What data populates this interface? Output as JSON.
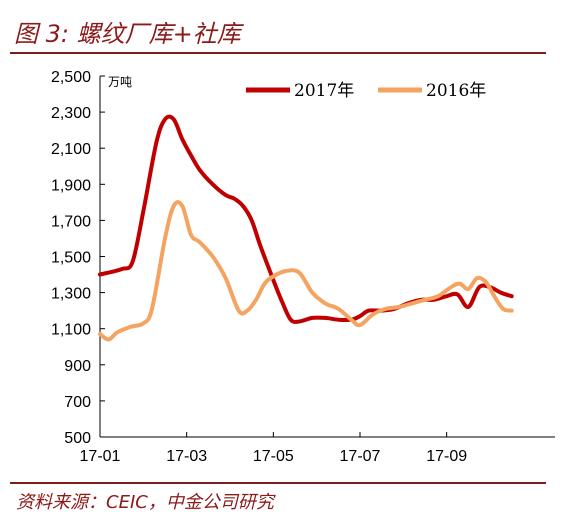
{
  "header": {
    "title": "图 3:  螺纹厂库+社库"
  },
  "footer": {
    "source": "资料来源：CEIC，中金公司研究"
  },
  "chart_data": {
    "type": "line",
    "title": "图 3:  螺纹厂库+社库",
    "ylabel": "万吨",
    "xlabel": "",
    "ylim": [
      500,
      2500
    ],
    "yticks": [
      500,
      700,
      900,
      1100,
      1300,
      1500,
      1700,
      1900,
      2100,
      2300,
      2500
    ],
    "ytick_labels": [
      "500",
      "700",
      "900",
      "1,100",
      "1,300",
      "1,500",
      "1,700",
      "1,900",
      "2,100",
      "2,300",
      "2,500"
    ],
    "xticks": [
      1,
      5,
      9,
      13,
      17
    ],
    "xtick_labels": [
      "17-01",
      "17-03",
      "17-05",
      "17-07",
      "17-09"
    ],
    "xlim": [
      1,
      22
    ],
    "grid": false,
    "legend_position": "top-right",
    "series": [
      {
        "name": "2017年",
        "color": "#c00000",
        "x": [
          1,
          2,
          2.5,
          3,
          3.6,
          4,
          4.4,
          4.8,
          5.2,
          5.6,
          6.2,
          6.8,
          7.2,
          7.6,
          8,
          8.4,
          9,
          9.4,
          9.8,
          10.2,
          10.8,
          11.4,
          12,
          12.6,
          13,
          13.4,
          14,
          14.6,
          15.2,
          15.8,
          16.4,
          17,
          17.5,
          18,
          18.5,
          19,
          19.5,
          20
        ],
        "values": [
          1400,
          1430,
          1470,
          1750,
          2130,
          2260,
          2260,
          2150,
          2060,
          1980,
          1900,
          1840,
          1820,
          1780,
          1700,
          1560,
          1370,
          1250,
          1150,
          1140,
          1160,
          1160,
          1150,
          1150,
          1170,
          1200,
          1200,
          1210,
          1240,
          1260,
          1260,
          1280,
          1290,
          1220,
          1330,
          1330,
          1300,
          1280
        ]
      },
      {
        "name": "2016年",
        "color": "#f4a460",
        "x": [
          1,
          1.4,
          1.8,
          2.4,
          3,
          3.4,
          4,
          4.4,
          4.8,
          5.2,
          5.6,
          6.2,
          6.8,
          7.4,
          7.8,
          8.2,
          8.6,
          9,
          9.6,
          10.2,
          10.8,
          11.4,
          12,
          12.6,
          13,
          13.6,
          14.2,
          14.8,
          15.4,
          16,
          16.6,
          17.2,
          17.6,
          18,
          18.4,
          18.8,
          19.2,
          19.6,
          20
        ],
        "values": [
          1070,
          1040,
          1080,
          1110,
          1130,
          1210,
          1600,
          1780,
          1780,
          1620,
          1580,
          1500,
          1380,
          1200,
          1200,
          1260,
          1350,
          1390,
          1420,
          1410,
          1300,
          1240,
          1210,
          1150,
          1120,
          1180,
          1210,
          1220,
          1240,
          1260,
          1280,
          1330,
          1350,
          1320,
          1380,
          1360,
          1280,
          1210,
          1200
        ]
      }
    ]
  }
}
